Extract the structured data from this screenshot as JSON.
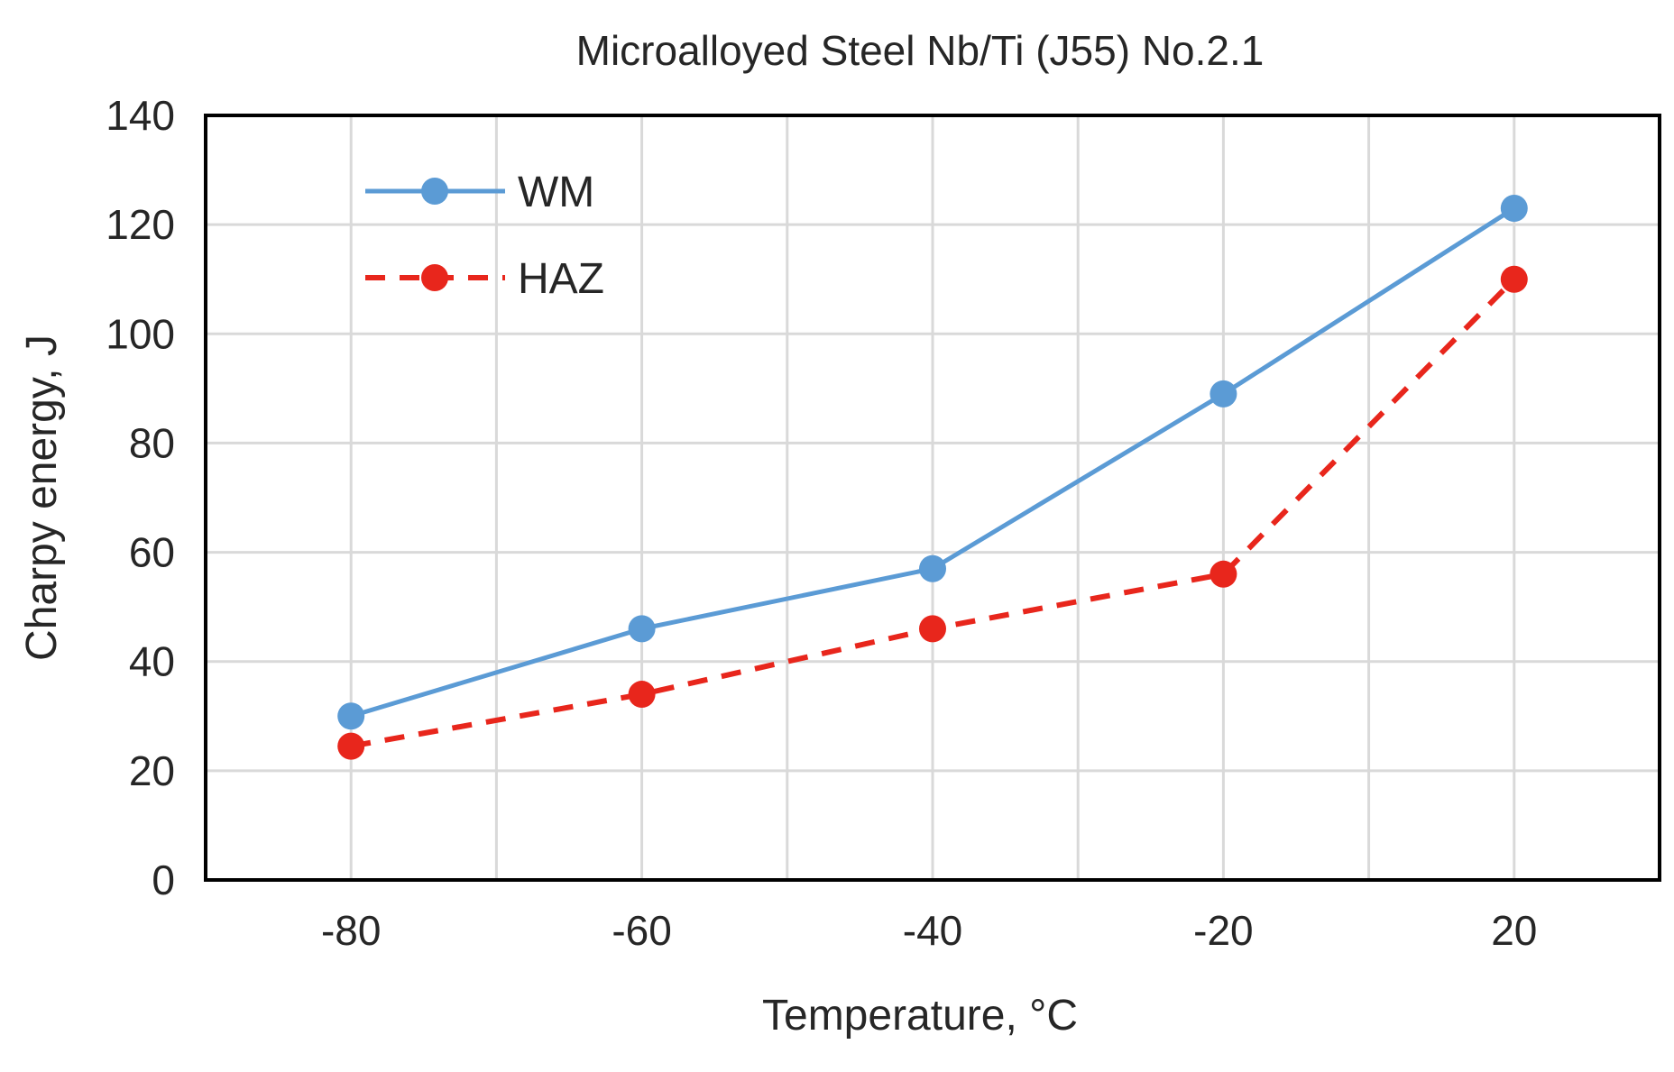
{
  "chart_data": {
    "type": "line",
    "title": "Microalloyed Steel Nb/Ti (J55) No.2.1",
    "xlabel": "Temperature, °C",
    "ylabel": "Charpy energy, J",
    "categories": [
      "-80",
      "-60",
      "-40",
      "-20",
      "20"
    ],
    "y_ticks": [
      "0",
      "20",
      "40",
      "60",
      "80",
      "100",
      "120",
      "140"
    ],
    "ylim": [
      0,
      140
    ],
    "grid": true,
    "legend_position": "top-left",
    "series": [
      {
        "name": "WM",
        "values": [
          30,
          46,
          57,
          89,
          123
        ],
        "color": "#5b9bd5",
        "line_style": "solid",
        "marker": "circle"
      },
      {
        "name": "HAZ",
        "values": [
          24.5,
          34,
          46,
          56,
          110
        ],
        "color": "#e8261c",
        "line_style": "dashed",
        "marker": "circle"
      }
    ]
  }
}
